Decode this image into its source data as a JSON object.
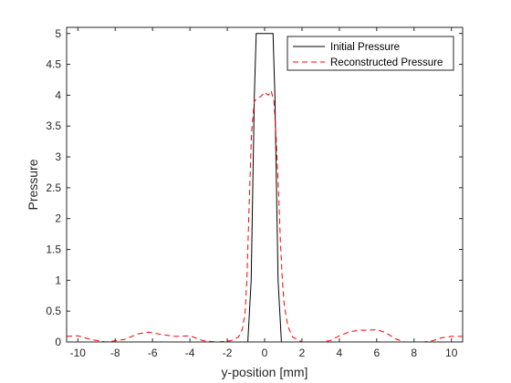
{
  "chart_data": {
    "type": "line",
    "title": "",
    "xlabel": "y-position [mm]",
    "ylabel": "Pressure",
    "xlim": [
      -10.6,
      10.6
    ],
    "ylim": [
      0,
      5.1
    ],
    "xticks": [
      -10,
      -8,
      -6,
      -4,
      -2,
      0,
      2,
      4,
      6,
      8,
      10
    ],
    "xtick_labels": [
      "-10",
      "-8",
      "-6",
      "-4",
      "-2",
      "0",
      "2",
      "4",
      "6",
      "8",
      "10"
    ],
    "yticks": [
      0,
      0.5,
      1,
      1.5,
      2,
      2.5,
      3,
      3.5,
      4,
      4.5,
      5
    ],
    "ytick_labels": [
      "0",
      "0.5",
      "1",
      "1.5",
      "2",
      "2.5",
      "3",
      "3.5",
      "4",
      "4.5",
      "5"
    ],
    "grid": false,
    "legend_position": "top-right",
    "series": [
      {
        "name": "Initial Pressure",
        "color": "#000000",
        "style": "solid",
        "x": [
          -10.6,
          -0.9,
          -0.72,
          -0.55,
          -0.45,
          0.45,
          0.55,
          0.72,
          0.9,
          10.6
        ],
        "y": [
          0,
          0,
          1.0,
          4.0,
          5.0,
          5.0,
          4.0,
          1.0,
          0,
          0
        ]
      },
      {
        "name": "Reconstructed Pressure",
        "color": "#ff0000",
        "style": "dashed",
        "x": [
          -10.6,
          -10.0,
          -9.3,
          -8.5,
          -7.5,
          -6.8,
          -6.2,
          -5.5,
          -4.8,
          -4.0,
          -3.3,
          -2.5,
          -1.8,
          -1.4,
          -1.2,
          -1.05,
          -0.95,
          -0.85,
          -0.7,
          -0.55,
          -0.4,
          -0.2,
          0.0,
          0.2,
          0.35,
          0.5,
          0.62,
          0.75,
          0.85,
          0.95,
          1.05,
          1.25,
          1.5,
          2.0,
          2.5,
          3.0,
          3.5,
          4.0,
          4.5,
          5.0,
          5.5,
          6.0,
          6.5,
          7.0,
          7.5,
          8.0,
          8.5,
          9.0,
          9.5,
          10.0,
          10.6
        ],
        "y": [
          0.09,
          0.1,
          0.04,
          0.0,
          0.04,
          0.13,
          0.16,
          0.12,
          0.09,
          0.1,
          0.02,
          0.0,
          0.02,
          0.08,
          0.2,
          0.45,
          1.0,
          2.0,
          3.4,
          3.9,
          3.95,
          3.98,
          4.05,
          4.0,
          4.07,
          3.9,
          3.3,
          2.4,
          1.6,
          1.0,
          0.6,
          0.25,
          0.08,
          0.0,
          0.0,
          0.0,
          0.02,
          0.1,
          0.16,
          0.19,
          0.19,
          0.2,
          0.15,
          0.05,
          0.0,
          0.0,
          0.0,
          0.02,
          0.07,
          0.09,
          0.09
        ]
      }
    ]
  }
}
